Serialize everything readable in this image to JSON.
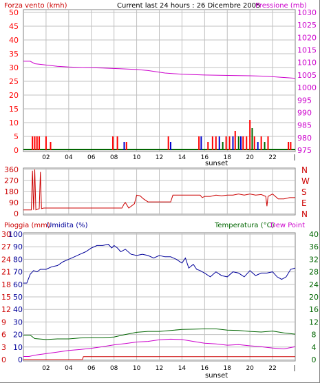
{
  "header": {
    "title": "Current last 24 hours : 26 Dicembre 2005"
  },
  "colors": {
    "wind_red": "#ff0000",
    "wind_blue": "#0000cc",
    "wind_green": "#006600",
    "pressure": "#cc00cc",
    "humidity": "#000099",
    "temperature": "#006600",
    "dewpoint": "#cc00cc",
    "rain": "#cc0000",
    "grid": "#c0c0c0"
  },
  "panels": [
    {
      "left_title": "Forza vento (kmh)",
      "right_title": "Pressione (mb)",
      "sunset_label": "sunset"
    },
    {
      "compass": [
        "N",
        "W",
        "S",
        "E",
        "N"
      ]
    },
    {
      "rain_title": "Pioggia (mm)",
      "humidity_title": "Umidita (%)",
      "temperature_title": "Temperatura (°C)",
      "dewpoint_title": "Dew Point",
      "sunset_label": "sunset"
    }
  ],
  "chart_data": [
    {
      "type": "bar",
      "title": "Current last 24 hours : 26 Dicembre 2005",
      "ylabel": "Forza vento (kmh)",
      "y2label": "Pressione (mb)",
      "x_ticks": [
        "02",
        "04",
        "06",
        "08",
        "10",
        "12",
        "14",
        "16",
        "18",
        "20",
        "22"
      ],
      "ylim": [
        0,
        50
      ],
      "y_ticks": [
        "0",
        "5",
        "10",
        "15",
        "20",
        "25",
        "30",
        "35",
        "40",
        "45",
        "50"
      ],
      "y2lim": [
        975,
        1030
      ],
      "y2_ticks": [
        "975",
        "980",
        "985",
        "990",
        "995",
        "1000",
        "1005",
        "1010",
        "1015",
        "1020",
        "1025",
        "1030"
      ],
      "grid": true,
      "series": [
        {
          "name": "Pressione (mb)",
          "type": "line",
          "x": [
            0.0,
            0.6,
            1.0,
            2.0,
            3.0,
            4.0,
            5.2,
            7.0,
            8.5,
            10.0,
            11.0,
            12.5,
            14.0,
            16.0,
            18.5,
            20.0,
            21.5,
            23.0,
            24.0
          ],
          "y": [
            1010.5,
            1010.5,
            1009.5,
            1009.0,
            1008.5,
            1008.2,
            1008.0,
            1007.8,
            1007.5,
            1007.2,
            1006.8,
            1005.8,
            1005.3,
            1005.0,
            1004.8,
            1004.7,
            1004.5,
            1004.0,
            1003.7
          ]
        },
        {
          "name": "Forza vento (kmh)",
          "type": "bar",
          "x": [
            0.8,
            1.0,
            1.2,
            1.4,
            2.0,
            2.4,
            7.9,
            8.3,
            8.9,
            9.1,
            12.8,
            13.0,
            15.5,
            15.7,
            16.3,
            16.7,
            17.0,
            17.3,
            17.6,
            17.9,
            18.2,
            18.5,
            18.7,
            19.0,
            19.2,
            19.4,
            19.7,
            20.0,
            20.2,
            20.4,
            20.7,
            21.0,
            21.3,
            21.6,
            23.4,
            23.6
          ],
          "y": [
            5,
            5,
            5,
            5,
            5,
            3,
            5,
            5,
            3,
            3,
            5,
            3,
            5,
            5,
            3,
            5,
            5,
            5,
            3,
            5,
            5,
            5,
            7,
            5,
            5,
            5,
            5,
            11,
            8,
            5,
            3,
            5,
            3,
            5,
            3,
            3
          ],
          "colors": [
            "red",
            "red",
            "red",
            "red",
            "red",
            "red",
            "red",
            "red",
            "blue",
            "red",
            "red",
            "blue",
            "red",
            "blue",
            "red",
            "red",
            "red",
            "blue",
            "green",
            "red",
            "red",
            "blue",
            "red",
            "green",
            "blue",
            "red",
            "red",
            "red",
            "green",
            "red",
            "blue",
            "red",
            "green",
            "red",
            "red",
            "red"
          ]
        }
      ]
    },
    {
      "type": "line",
      "ylabel": "",
      "ylim": [
        0,
        360
      ],
      "y_ticks": [
        "0",
        "90",
        "180",
        "270",
        "360"
      ],
      "grid": true,
      "series": [
        {
          "name": "",
          "x": [
            0.0,
            0.7,
            0.8,
            0.9,
            1.0,
            1.1,
            1.4,
            1.5,
            1.6,
            1.8,
            2.0,
            5.0,
            8.0,
            8.7,
            8.9,
            9.0,
            9.3,
            9.8,
            10.0,
            10.3,
            10.6,
            11.0,
            13.0,
            13.2,
            13.4,
            15.6,
            15.8,
            16.0,
            16.5,
            17.0,
            17.5,
            18.0,
            18.5,
            19.0,
            19.5,
            20.0,
            20.5,
            21.0,
            21.4,
            21.5,
            21.6,
            21.8,
            22.0,
            22.5,
            23.0,
            23.5,
            24.0
          ],
          "y": [
            30,
            30,
            350,
            30,
            360,
            30,
            40,
            340,
            40,
            45,
            45,
            45,
            45,
            45,
            80,
            90,
            45,
            80,
            150,
            145,
            120,
            95,
            95,
            150,
            150,
            150,
            130,
            140,
            140,
            150,
            145,
            150,
            150,
            160,
            150,
            160,
            150,
            155,
            140,
            60,
            140,
            150,
            160,
            120,
            120,
            130,
            130
          ]
        }
      ]
    },
    {
      "type": "line",
      "ylabel": "Umidita (%)",
      "x_ticks": [
        "02",
        "04",
        "06",
        "08",
        "10",
        "12",
        "14",
        "16",
        "18",
        "20",
        "22"
      ],
      "grid": true,
      "rain_axis": {
        "label": "Pioggia (mm)",
        "ylim": [
          0,
          30
        ],
        "ticks": [
          "0",
          "3",
          "6",
          "9",
          "12",
          "15",
          "18",
          "21",
          "24",
          "27",
          "30"
        ]
      },
      "humidity_axis": {
        "label": "Umidita (%)",
        "ylim": [
          0,
          100
        ],
        "ticks": [
          "0",
          "10",
          "20",
          "30",
          "40",
          "50",
          "60",
          "70",
          "80",
          "90",
          "100"
        ]
      },
      "temperature_axis": {
        "label": "Temperatura (°C)",
        "ylim": [
          0,
          40
        ],
        "ticks": [
          "0",
          "4",
          "8",
          "12",
          "16",
          "20",
          "24",
          "28",
          "32",
          "36",
          "40"
        ]
      },
      "series": [
        {
          "name": "Umidita (%)",
          "axis": "humidity",
          "x": [
            0.0,
            0.3,
            0.6,
            0.9,
            1.2,
            1.5,
            2.0,
            2.5,
            3.0,
            3.5,
            4.0,
            4.5,
            5.0,
            5.5,
            6.0,
            6.5,
            7.0,
            7.5,
            7.8,
            8.0,
            8.3,
            8.6,
            9.0,
            9.5,
            10.0,
            10.5,
            11.0,
            11.5,
            12.0,
            12.5,
            13.0,
            13.5,
            14.0,
            14.3,
            14.6,
            15.0,
            15.3,
            15.6,
            16.0,
            16.5,
            17.0,
            17.5,
            18.0,
            18.5,
            19.0,
            19.5,
            20.0,
            20.5,
            21.0,
            21.5,
            22.0,
            22.4,
            22.8,
            23.2,
            23.6,
            24.0
          ],
          "y": [
            61,
            61,
            68,
            71,
            70,
            72,
            72,
            74,
            75,
            78,
            80,
            82,
            84,
            86,
            89,
            91,
            91,
            92,
            89,
            91,
            89,
            86,
            88,
            84,
            83,
            84,
            83,
            81,
            83,
            82,
            82,
            80,
            77,
            81,
            73,
            76,
            72,
            71,
            69,
            66,
            70,
            67,
            66,
            70,
            69,
            66,
            71,
            67,
            69,
            69,
            70,
            66,
            64,
            66,
            72,
            73
          ]
        },
        {
          "name": "Temperatura (°C)",
          "axis": "temperature",
          "x": [
            0.0,
            0.6,
            1.0,
            2.0,
            3.0,
            4.0,
            5.0,
            6.0,
            7.0,
            8.0,
            9.0,
            10.0,
            11.0,
            12.0,
            13.0,
            14.0,
            15.0,
            16.0,
            17.0,
            18.0,
            19.0,
            20.0,
            21.0,
            22.0,
            23.0,
            24.0
          ],
          "y": [
            7.8,
            7.8,
            6.7,
            6.4,
            6.6,
            6.6,
            6.9,
            7.0,
            7.0,
            7.2,
            8.0,
            8.7,
            9.0,
            9.0,
            9.3,
            9.6,
            9.7,
            9.8,
            9.8,
            9.4,
            9.3,
            9.0,
            8.8,
            9.1,
            8.5,
            8.1
          ]
        },
        {
          "name": "Dew Point",
          "axis": "temperature",
          "x": [
            0.0,
            0.5,
            1.0,
            2.0,
            3.0,
            4.0,
            5.0,
            6.0,
            7.0,
            8.0,
            9.0,
            10.0,
            11.0,
            12.0,
            13.0,
            14.0,
            15.0,
            16.0,
            17.0,
            18.0,
            19.0,
            20.0,
            21.0,
            22.0,
            23.0,
            24.0
          ],
          "y": [
            1.0,
            1.0,
            1.4,
            1.9,
            2.4,
            2.9,
            3.2,
            3.6,
            4.1,
            4.7,
            5.1,
            5.6,
            5.8,
            6.3,
            6.5,
            6.4,
            5.8,
            5.2,
            5.0,
            4.6,
            4.8,
            4.4,
            4.1,
            3.7,
            3.4,
            4.1
          ]
        },
        {
          "name": "Pioggia (mm)",
          "axis": "rain",
          "x": [
            0.0,
            5.2,
            5.3,
            24.0
          ],
          "y": [
            0.0,
            0.0,
            0.7,
            0.7
          ]
        }
      ]
    }
  ]
}
